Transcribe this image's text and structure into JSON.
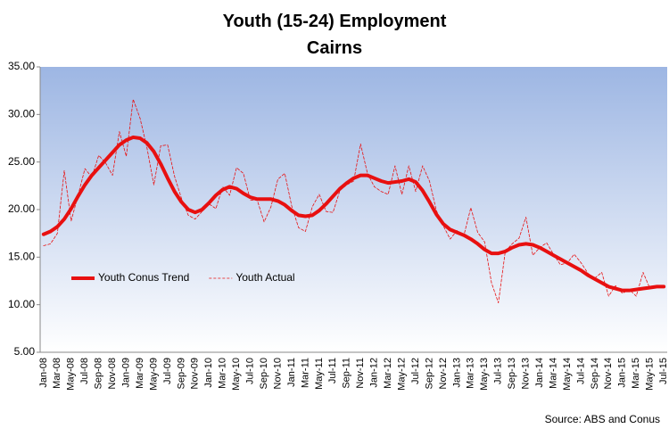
{
  "chart_data": {
    "type": "line",
    "title": "Youth (15-24) Employment",
    "subtitle": "Cairns",
    "source": "Source: ABS and Conus",
    "categories": [
      "Jan-08",
      null,
      "Mar-08",
      null,
      "May-08",
      null,
      "Jul-08",
      null,
      "Sep-08",
      null,
      "Nov-08",
      null,
      "Jan-09",
      null,
      "Mar-09",
      null,
      "May-09",
      null,
      "Jul-09",
      null,
      "Sep-09",
      null,
      "Nov-09",
      null,
      "Jan-10",
      null,
      "Mar-10",
      null,
      "May-10",
      null,
      "Jul-10",
      null,
      "Sep-10",
      null,
      "Nov-10",
      null,
      "Jan-11",
      null,
      "Mar-11",
      null,
      "May-11",
      null,
      "Jul-11",
      null,
      "Sep-11",
      null,
      "Nov-11",
      null,
      "Jan-12",
      null,
      "Mar-12",
      null,
      "May-12",
      null,
      "Jul-12",
      null,
      "Sep-12",
      null,
      "Nov-12",
      null,
      "Jan-13",
      null,
      "Mar-13",
      null,
      "May-13",
      null,
      "Jul-13",
      null,
      "Sep-13",
      null,
      "Nov-13",
      null,
      "Jan-14",
      null,
      "Mar-14",
      null,
      "May-14",
      null,
      "Jul-14",
      null,
      "Sep-14",
      null,
      "Nov-14",
      null,
      "Jan-15",
      null,
      "Mar-15",
      null,
      "May-15",
      null,
      "Jul-15"
    ],
    "series": [
      {
        "name": "Youth Conus Trend",
        "color": "#e81010",
        "line_style": "solid",
        "values": [
          17.4,
          17.7,
          18.2,
          19.0,
          20.1,
          21.4,
          22.6,
          23.6,
          24.4,
          25.2,
          26.0,
          26.8,
          27.3,
          27.6,
          27.5,
          27.0,
          26.1,
          24.8,
          23.3,
          21.9,
          20.8,
          20.0,
          19.7,
          20.0,
          20.7,
          21.5,
          22.1,
          22.4,
          22.2,
          21.7,
          21.3,
          21.1,
          21.1,
          21.1,
          20.9,
          20.5,
          19.9,
          19.4,
          19.3,
          19.4,
          19.9,
          20.6,
          21.4,
          22.2,
          22.8,
          23.3,
          23.6,
          23.6,
          23.3,
          23.0,
          22.8,
          22.9,
          23.0,
          23.2,
          22.9,
          22.0,
          20.8,
          19.5,
          18.5,
          17.9,
          17.6,
          17.3,
          16.9,
          16.4,
          15.8,
          15.4,
          15.4,
          15.6,
          16.0,
          16.3,
          16.4,
          16.3,
          16.0,
          15.6,
          15.2,
          14.8,
          14.4,
          14.0,
          13.6,
          13.1,
          12.7,
          12.3,
          11.9,
          11.7,
          11.5,
          11.5,
          11.6,
          11.7,
          11.8,
          11.9,
          11.9
        ]
      },
      {
        "name": "Youth Actual",
        "color": "#e81010",
        "line_style": "dashed",
        "values": [
          16.2,
          16.4,
          17.5,
          24.1,
          18.8,
          21.5,
          24.3,
          23.4,
          25.7,
          24.9,
          23.6,
          28.2,
          25.6,
          31.6,
          29.6,
          26.5,
          22.6,
          26.7,
          26.8,
          23.5,
          21.2,
          19.4,
          19.0,
          19.8,
          20.6,
          20.1,
          22.4,
          21.5,
          24.4,
          23.8,
          21.0,
          21.0,
          18.7,
          20.3,
          23.2,
          23.8,
          20.4,
          18.1,
          17.7,
          20.3,
          21.6,
          19.8,
          19.7,
          22.0,
          22.6,
          23.0,
          26.9,
          23.8,
          22.4,
          21.9,
          21.6,
          24.6,
          21.6,
          24.6,
          21.9,
          24.6,
          23.0,
          19.9,
          18.3,
          16.9,
          17.8,
          17.3,
          20.2,
          17.6,
          16.6,
          12.3,
          10.2,
          15.6,
          16.4,
          17.0,
          19.2,
          15.2,
          16.0,
          16.5,
          15.3,
          14.2,
          14.4,
          15.3,
          14.4,
          13.3,
          12.8,
          13.4,
          10.9,
          12.0,
          11.2,
          11.6,
          10.9,
          13.4,
          11.7,
          11.8,
          11.9
        ]
      }
    ],
    "ylim": [
      5,
      35
    ],
    "yticks": [
      {
        "value": 5,
        "label": "5.00"
      },
      {
        "value": 10,
        "label": "10.00"
      },
      {
        "value": 15,
        "label": "15.00"
      },
      {
        "value": 20,
        "label": "20.00"
      },
      {
        "value": 25,
        "label": "25.00"
      },
      {
        "value": 30,
        "label": "30.00"
      },
      {
        "value": 35,
        "label": "35.00"
      }
    ],
    "grid": false,
    "legend": "left"
  }
}
